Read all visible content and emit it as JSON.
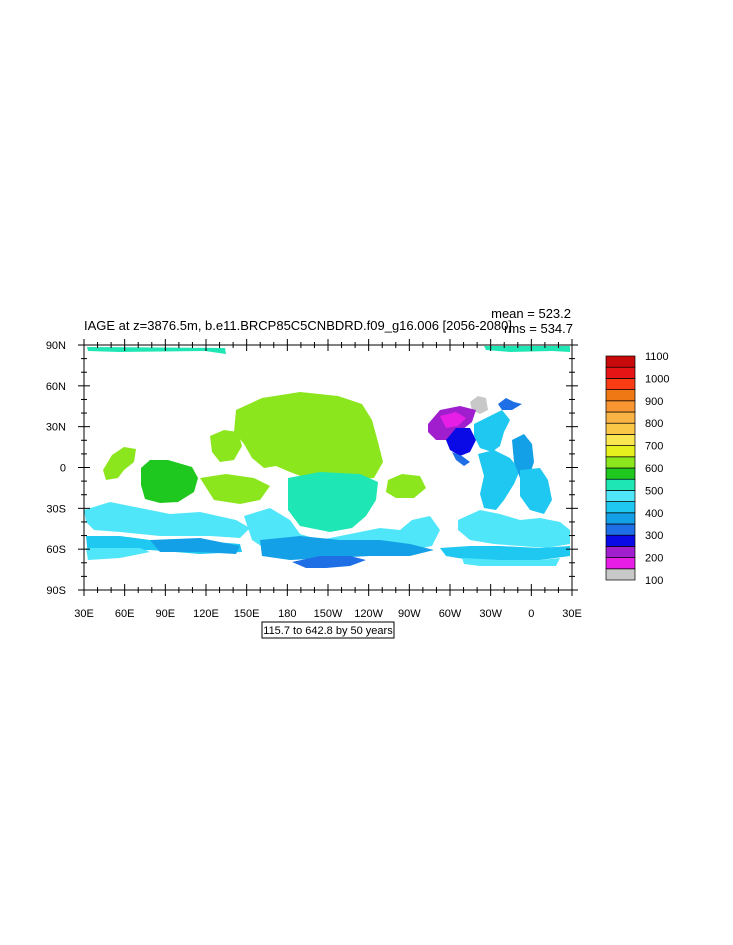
{
  "chart_data": {
    "type": "map-contour",
    "title": "IAGE at z=3876.5m, b.e11.BRCP85C5CNBDRD.f09_g16.006 [2056-2080]",
    "stats": {
      "mean_label": "mean = 523.2",
      "rms_label": "rms = 534.7",
      "mean": 523.2,
      "rms": 534.7
    },
    "contour_info": "115.7 to 642.8 by 50 years",
    "lon_range": [
      30,
      390
    ],
    "lat_range": [
      -90,
      90
    ],
    "x_ticks": [
      {
        "lon": 30,
        "label": "30E"
      },
      {
        "lon": 60,
        "label": "60E"
      },
      {
        "lon": 90,
        "label": "90E"
      },
      {
        "lon": 120,
        "label": "120E"
      },
      {
        "lon": 150,
        "label": "150E"
      },
      {
        "lon": 180,
        "label": "180"
      },
      {
        "lon": 210,
        "label": "150W"
      },
      {
        "lon": 240,
        "label": "120W"
      },
      {
        "lon": 270,
        "label": "90W"
      },
      {
        "lon": 300,
        "label": "60W"
      },
      {
        "lon": 330,
        "label": "30W"
      },
      {
        "lon": 360,
        "label": "0"
      },
      {
        "lon": 390,
        "label": "30E"
      }
    ],
    "y_ticks": [
      {
        "lat": 90,
        "label": "90N"
      },
      {
        "lat": 60,
        "label": "60N"
      },
      {
        "lat": 30,
        "label": "30N"
      },
      {
        "lat": 0,
        "label": "0"
      },
      {
        "lat": -30,
        "label": "30S"
      },
      {
        "lat": -60,
        "label": "60S"
      },
      {
        "lat": -90,
        "label": "90S"
      }
    ],
    "colorbar": {
      "levels": [
        "100",
        "200",
        "300",
        "400",
        "500",
        "600",
        "700",
        "800",
        "900",
        "1000",
        "1100"
      ],
      "colors": [
        "#c8c8c8",
        "#e61ee6",
        "#a01ecd",
        "#0a0ae6",
        "#1e6ee6",
        "#14a0e6",
        "#1ec8f0",
        "#50e6fa",
        "#1ee6b4",
        "#1ec81e",
        "#8ce61e",
        "#e6f01e",
        "#fae650",
        "#fac846",
        "#fab446",
        "#fa9632",
        "#f07814",
        "#fa3c14",
        "#e61414",
        "#c80a0a"
      ]
    },
    "regions": [
      {
        "color": "#8ce61e",
        "lon": [
          35,
          270
        ],
        "lat": [
          -40,
          60
        ]
      },
      {
        "color": "#1ec81e",
        "lon": [
          55,
          100
        ],
        "lat": [
          -30,
          15
        ]
      },
      {
        "color": "#1ee6b4",
        "lon": [
          30,
          395
        ],
        "lat": [
          -70,
          90
        ]
      },
      {
        "color": "#50e6fa",
        "lon": [
          30,
          390
        ],
        "lat": [
          -70,
          40
        ]
      },
      {
        "color": "#1ec8f0",
        "lon": [
          290,
          390
        ],
        "lat": [
          -70,
          50
        ]
      },
      {
        "color": "#14a0e6",
        "lon": [
          170,
          265
        ],
        "lat": [
          -75,
          -55
        ]
      },
      {
        "color": "#1e6ee6",
        "lon": [
          185,
          265
        ],
        "lat": [
          -75,
          45
        ]
      },
      {
        "color": "#0a0ae6",
        "lon": [
          288,
          305
        ],
        "lat": [
          10,
          30
        ]
      },
      {
        "color": "#a01ecd",
        "lon": [
          285,
          308
        ],
        "lat": [
          22,
          43
        ]
      },
      {
        "color": "#c8c8c8",
        "lon": [
          308,
          320
        ],
        "lat": [
          40,
          50
        ]
      }
    ]
  }
}
